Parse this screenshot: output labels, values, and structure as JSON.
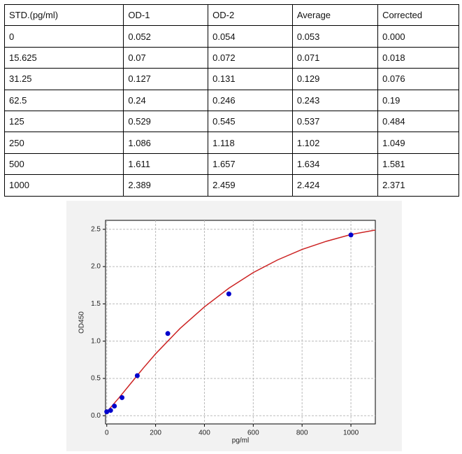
{
  "table": {
    "header": [
      "STD.(pg/ml)",
      "OD-1",
      "OD-2",
      "Average",
      "Corrected"
    ],
    "rows": [
      [
        "0",
        "0.052",
        "0.054",
        "0.053",
        "0.000"
      ],
      [
        "15.625",
        "0.07",
        "0.072",
        "0.071",
        "0.018"
      ],
      [
        "31.25",
        "0.127",
        "0.131",
        "0.129",
        "0.076"
      ],
      [
        "62.5",
        "0.24",
        "0.246",
        "0.243",
        "0.19"
      ],
      [
        "125",
        "0.529",
        "0.545",
        "0.537",
        "0.484"
      ],
      [
        "250",
        "1.086",
        "1.118",
        "1.102",
        "1.049"
      ],
      [
        "500",
        "1.611",
        "1.657",
        "1.634",
        "1.581"
      ],
      [
        "1000",
        "2.389",
        "2.459",
        "2.424",
        "2.371"
      ]
    ]
  },
  "chart_data": {
    "type": "scatter",
    "xlabel": "pg/ml",
    "ylabel": "OD450",
    "xlim": [
      -5,
      1100
    ],
    "ylim": [
      -0.11,
      2.62
    ],
    "xticks": [
      0,
      200,
      400,
      600,
      800,
      1000
    ],
    "yticks": [
      {
        "value": 0,
        "label": "0.0"
      },
      0.5,
      {
        "value": 1,
        "label": "1.0"
      },
      1.5,
      {
        "value": 2,
        "label": "2.0"
      },
      2.5
    ],
    "grid": true,
    "series": [
      {
        "type": "scatter",
        "color": "#0000cc",
        "x": [
          0,
          15.625,
          31.25,
          62.5,
          125,
          250,
          500,
          1000
        ],
        "values": [
          0.053,
          0.071,
          0.129,
          0.243,
          0.537,
          1.102,
          1.634,
          2.424
        ]
      },
      {
        "type": "line",
        "color": "#cc2222",
        "x": [
          0,
          50,
          100,
          150,
          200,
          300,
          400,
          500,
          600,
          700,
          800,
          900,
          1000,
          1100
        ],
        "values": [
          0.05,
          0.24,
          0.44,
          0.64,
          0.83,
          1.17,
          1.46,
          1.71,
          1.92,
          2.09,
          2.23,
          2.34,
          2.43,
          2.49
        ]
      }
    ]
  }
}
